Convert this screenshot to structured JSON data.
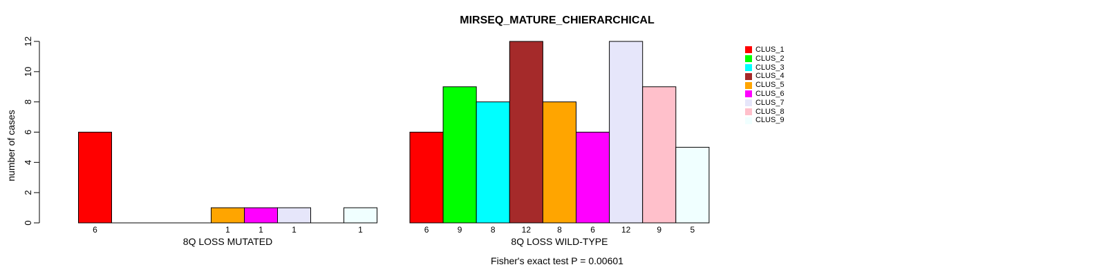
{
  "chart_data": {
    "type": "bar",
    "title": "MIRSEQ_MATURE_CHIERARCHICAL",
    "ylabel": "number of cases",
    "xlabel": "",
    "footnote": "Fisher's exact test P = 0.00601",
    "ylim": [
      0,
      12
    ],
    "yticks": [
      0,
      2,
      4,
      6,
      8,
      10,
      12
    ],
    "grid": false,
    "legend_position": "right",
    "categories": [
      "CLUS_1",
      "CLUS_2",
      "CLUS_3",
      "CLUS_4",
      "CLUS_5",
      "CLUS_6",
      "CLUS_7",
      "CLUS_8",
      "CLUS_9"
    ],
    "colors": [
      "#ff0000",
      "#00ff00",
      "#00ffff",
      "#a52a2a",
      "#ffa500",
      "#ff00ff",
      "#e6e6fa",
      "#ffc0cb",
      "#f0ffff"
    ],
    "series": [
      {
        "name": "8Q LOSS MUTATED",
        "values": [
          6,
          0,
          0,
          0,
          1,
          1,
          1,
          0,
          1
        ]
      },
      {
        "name": "8Q LOSS WILD-TYPE",
        "values": [
          6,
          9,
          8,
          12,
          8,
          6,
          12,
          9,
          5
        ]
      }
    ]
  }
}
